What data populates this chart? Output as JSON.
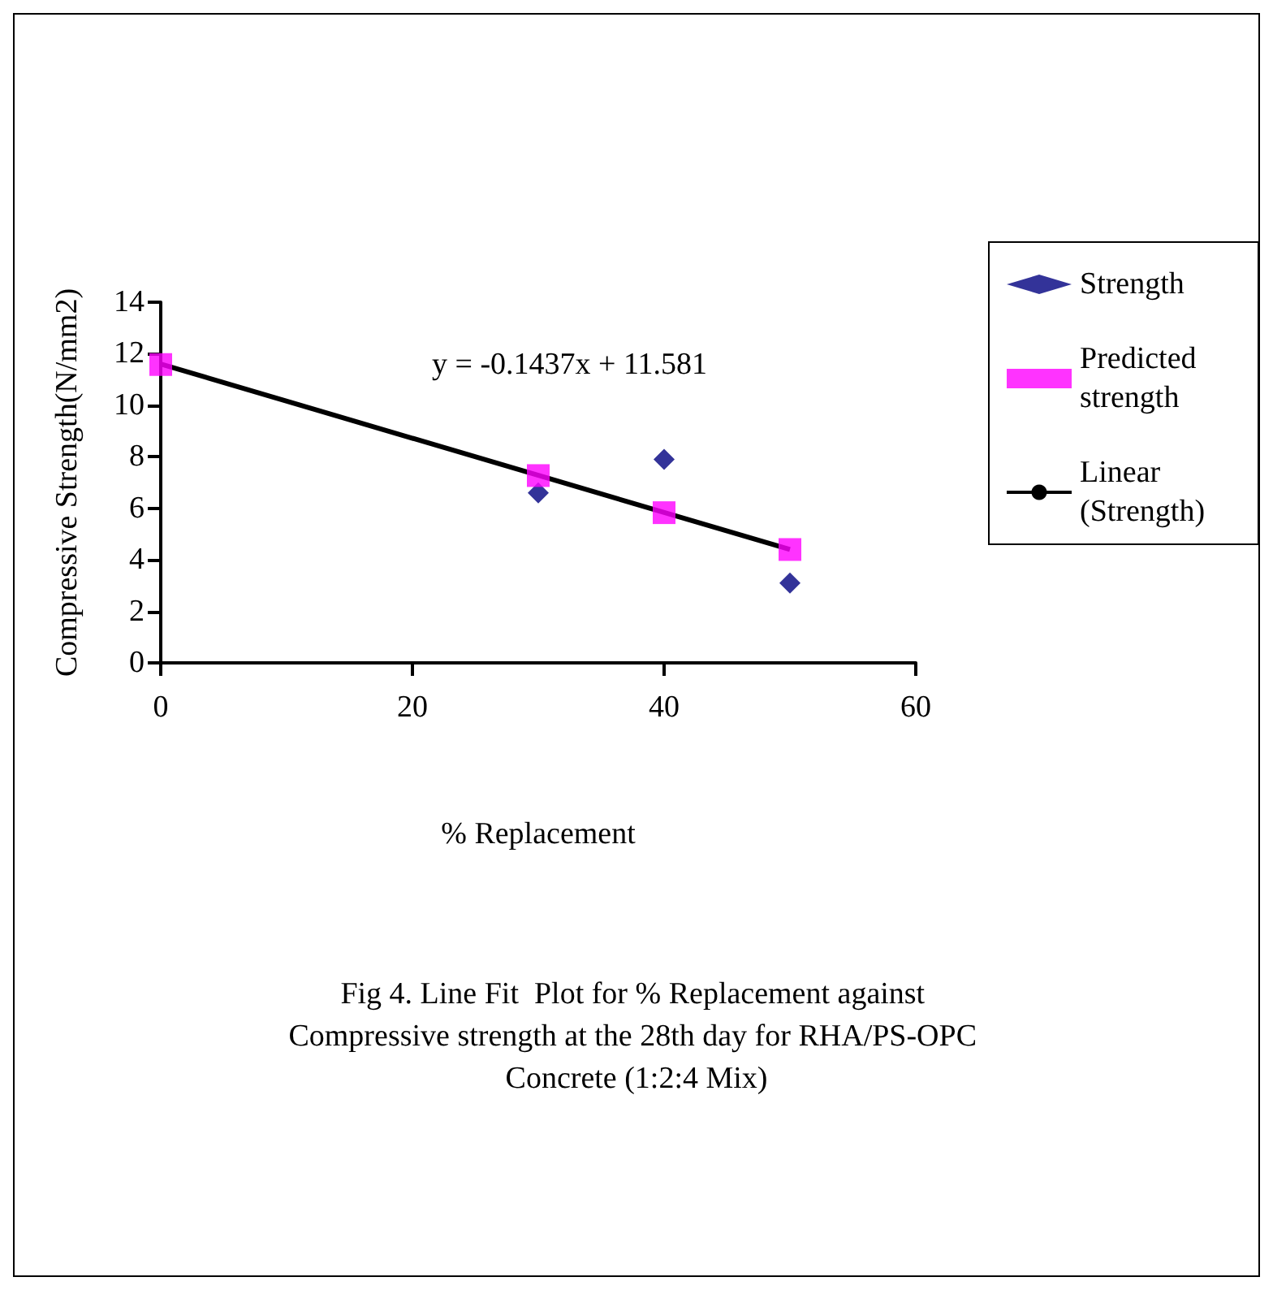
{
  "chart_data": {
    "type": "scatter",
    "title": "Fig 4. Line Fit  Plot for % Replacement against Compressive strength at the 28th day for RHA/PS-OPC Concrete (1:2:4 Mix)",
    "xlabel": "% Replacement",
    "ylabel": "Compressive Strength(N/mm2)",
    "annotations": [
      "y = -0.1437x + 11.581"
    ],
    "x": [
      0,
      30,
      40,
      50
    ],
    "series": [
      {
        "name": "Strength",
        "color": "#000080",
        "marker": "diamond",
        "values": [
          null,
          6.6,
          7.9,
          3.1
        ]
      },
      {
        "name": "Predicted strength",
        "color": "#ff00ff",
        "marker": "square",
        "values": [
          11.58,
          7.27,
          5.83,
          4.4
        ]
      },
      {
        "name": "Linear (Strength)",
        "type": "line",
        "color": "#000000",
        "marker": "none",
        "x": [
          0,
          50
        ],
        "values": [
          11.6,
          4.4
        ]
      }
    ],
    "xlim": [
      0,
      60
    ],
    "xticks": [
      0,
      20,
      40,
      60
    ],
    "ylim": [
      0,
      14
    ],
    "yticks": [
      0,
      2,
      4,
      6,
      8,
      10,
      12,
      14
    ],
    "grid": false,
    "legend": "right"
  }
}
